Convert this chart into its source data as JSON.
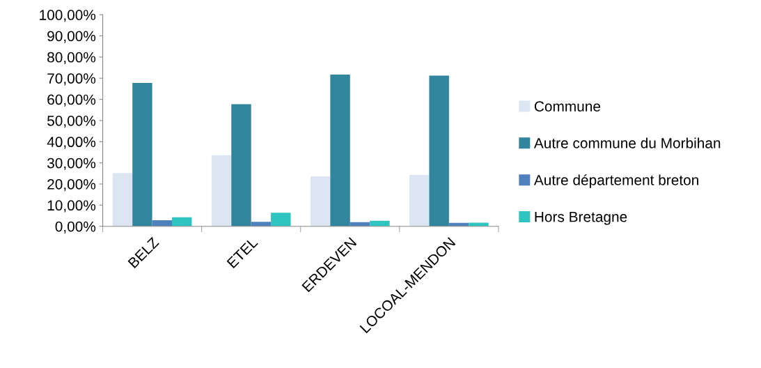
{
  "chart_data": {
    "type": "bar",
    "categories": [
      "BELZ",
      "ETEL",
      "ERDEVEN",
      "LOCOAL-MENDON"
    ],
    "series": [
      {
        "name": "Commune",
        "color": "#dce6f2",
        "values": [
          25.2,
          33.6,
          23.6,
          24.3
        ]
      },
      {
        "name": "Autre commune du Morbihan",
        "color": "#31859c",
        "values": [
          67.8,
          57.7,
          71.7,
          71.2
        ]
      },
      {
        "name": "Autre département breton",
        "color": "#4f81bd",
        "values": [
          2.9,
          2.1,
          2.0,
          1.6
        ]
      },
      {
        "name": "Hors Bretagne",
        "color": "#2ec4c0",
        "values": [
          4.3,
          6.4,
          2.6,
          1.7
        ]
      }
    ],
    "ylim": [
      0,
      100
    ],
    "yticks": [
      {
        "value": 0,
        "label": "0,00%"
      },
      {
        "value": 10,
        "label": "10,00%"
      },
      {
        "value": 20,
        "label": "20,00%"
      },
      {
        "value": 30,
        "label": "30,00%"
      },
      {
        "value": 40,
        "label": "40,00%"
      },
      {
        "value": 50,
        "label": "50,00%"
      },
      {
        "value": 60,
        "label": "60,00%"
      },
      {
        "value": 70,
        "label": "70,00%"
      },
      {
        "value": 80,
        "label": "80,00%"
      },
      {
        "value": 90,
        "label": "90,00%"
      },
      {
        "value": 100,
        "label": "100,00%"
      }
    ],
    "grid": false,
    "legend": "right"
  }
}
